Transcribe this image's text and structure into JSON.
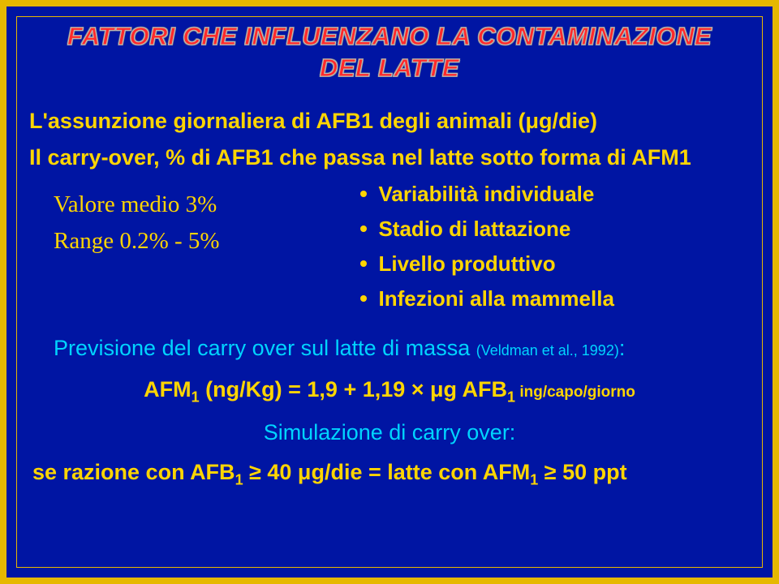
{
  "colors": {
    "background": "#0015a3",
    "border": "#e6b800",
    "title": "#ff2a2a",
    "yellow": "#ffd500",
    "cyan": "#00d4ff"
  },
  "title_line1": "FATTORI CHE INFLUENZANO LA CONTAMINAZIONE",
  "title_line2": "DEL LATTE",
  "line_assunzione": "L'assunzione giornaliera di AFB1 degli animali (μg/die)",
  "line_carryover": "Il carry-over, % di AFB1 che passa nel latte sotto forma di AFM1",
  "left_col": {
    "valore_medio": "Valore medio 3%",
    "range": "Range 0.2% - 5%"
  },
  "bullets": [
    "Variabilità individuale",
    "Stadio di lattazione",
    "Livello produttivo",
    "Infezioni alla mammella"
  ],
  "prevision_text": "Previsione del carry over sul latte di massa ",
  "prevision_ref": "(Veldman et al., 1992)",
  "prevision_colon": ":",
  "formula": {
    "prefix": "AFM",
    "sub1": "1",
    "mid": " (ng/Kg) = 1,9 + 1,19 × μg AFB",
    "sub2": "1",
    "suffix": " ing/capo/giorno"
  },
  "sim_line": "Simulazione di carry over:",
  "final": {
    "p1": "se razione con AFB",
    "s1": "1",
    "p2": " ≥ 40 μg/die = latte con AFM",
    "s2": "1",
    "p3": "  ≥  50 ppt"
  }
}
